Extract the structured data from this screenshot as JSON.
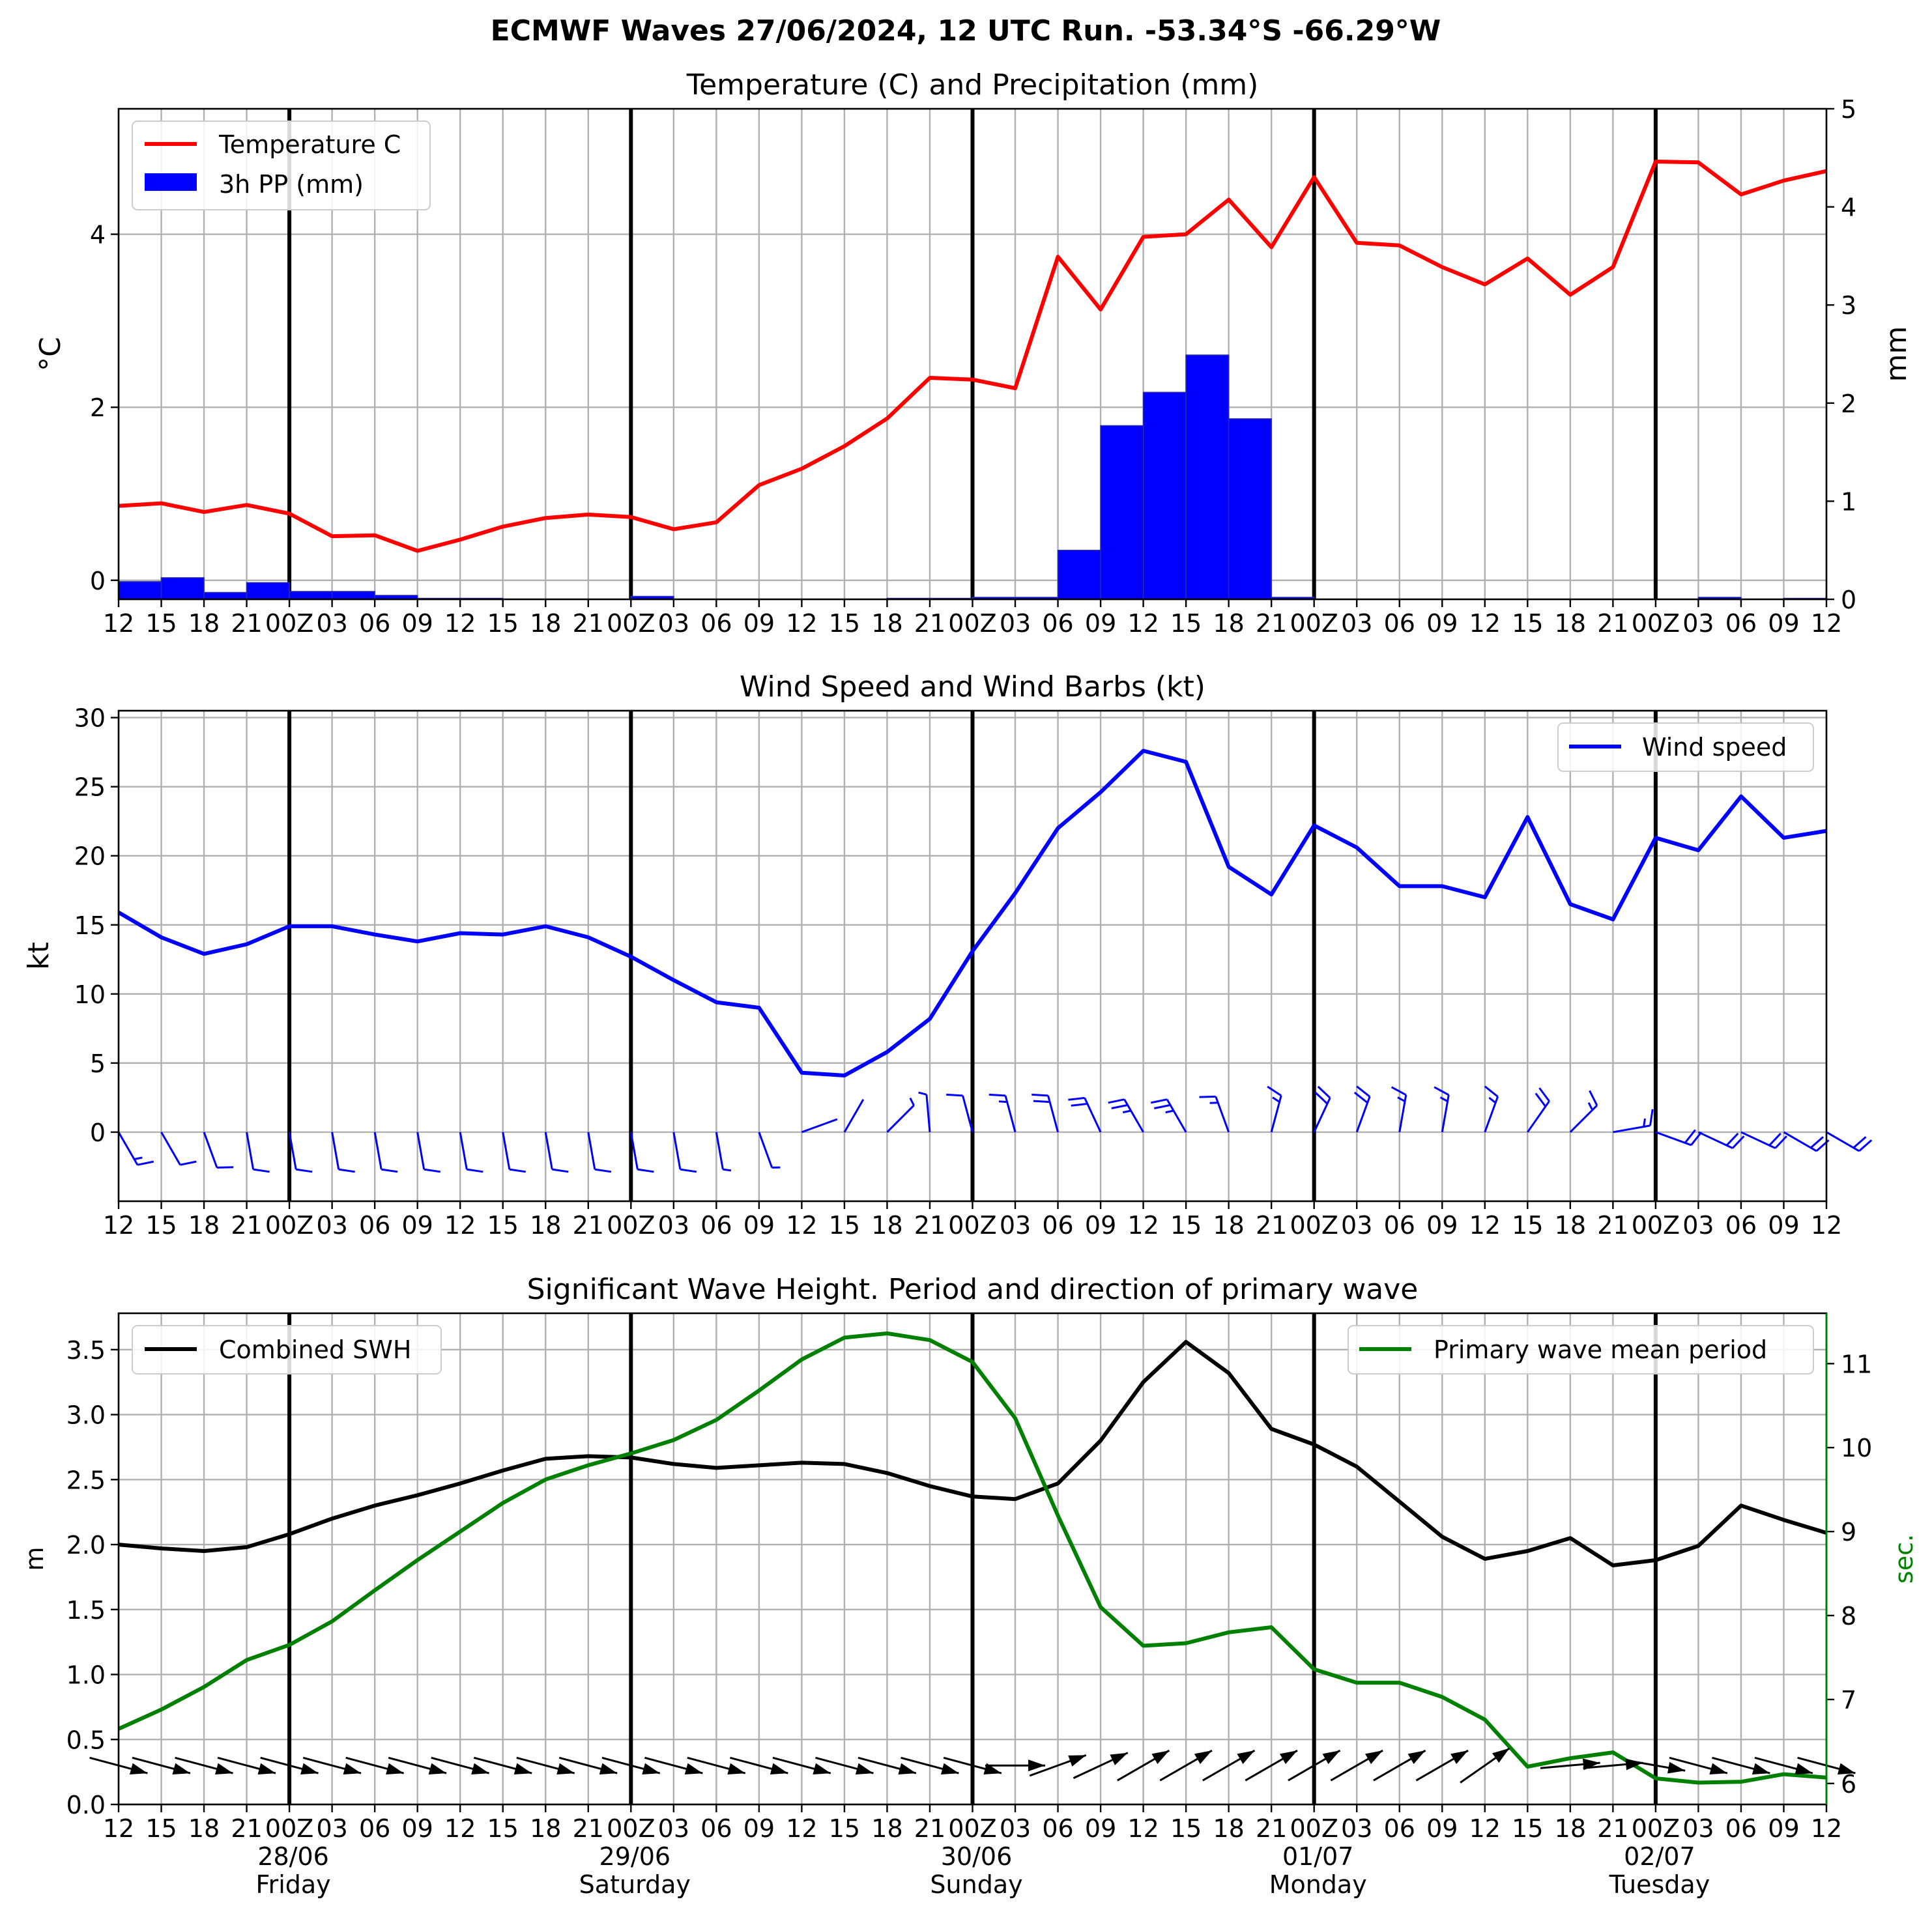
{
  "figure_title": "ECMWF Waves 27/06/2024, 12 UTC Run. -53.34°S -66.29°W",
  "colors": {
    "temperature": "#ff0000",
    "precipitation": "#0000ff",
    "wind": "#0000ff",
    "swh": "#000000",
    "period": "#008000",
    "grid": "#b0b0b0"
  },
  "time_axis": {
    "x_tick_labels": [
      "12",
      "15",
      "18",
      "21",
      "00Z",
      "03",
      "06",
      "09",
      "12",
      "15",
      "18",
      "21",
      "00Z",
      "03",
      "06",
      "09",
      "12",
      "15",
      "18",
      "21",
      "00Z",
      "03",
      "06",
      "09",
      "12",
      "15",
      "18",
      "21",
      "00Z",
      "03",
      "06",
      "09",
      "12",
      "15",
      "18",
      "21",
      "00Z",
      "03",
      "06",
      "09",
      "12"
    ],
    "day_markers": [
      {
        "date": "28/06",
        "day": "Friday"
      },
      {
        "date": "29/06",
        "day": "Saturday"
      },
      {
        "date": "30/06",
        "day": "Sunday"
      },
      {
        "date": "01/07",
        "day": "Monday"
      },
      {
        "date": "02/07",
        "day": "Tuesday"
      }
    ]
  },
  "chart_data": [
    {
      "type": "line",
      "title": "Temperature (C) and Precipitation (mm)",
      "ylabel": "°C",
      "y2label": "mm",
      "ylim": [
        -0.22,
        5.45
      ],
      "y2lim": [
        0,
        5
      ],
      "yticks": [
        0,
        2,
        4
      ],
      "y2ticks": [
        0,
        1,
        2,
        3,
        4,
        5
      ],
      "legend_position": "top-left",
      "series": [
        {
          "name": "Temperature C",
          "kind": "line",
          "axis": "left",
          "values": [
            0.86,
            0.89,
            0.79,
            0.87,
            0.77,
            0.51,
            0.52,
            0.34,
            0.47,
            0.62,
            0.72,
            0.76,
            0.73,
            0.59,
            0.67,
            1.1,
            1.29,
            1.55,
            1.87,
            2.34,
            2.32,
            2.22,
            3.74,
            3.13,
            3.97,
            4.0,
            4.4,
            3.85,
            4.66,
            3.9,
            3.87,
            3.62,
            3.42,
            3.72,
            3.3,
            3.62,
            4.84,
            4.83,
            4.46,
            4.62,
            4.73
          ]
        },
        {
          "name": "3h PP (mm)",
          "kind": "bar",
          "axis": "right",
          "values": [
            0.18,
            0.22,
            0.07,
            0.17,
            0.08,
            0.08,
            0.04,
            0.01,
            0.01,
            0.0,
            0.0,
            0.0,
            0.03,
            0.0,
            0.0,
            0.0,
            0.0,
            0.0,
            0.01,
            0.01,
            0.02,
            0.02,
            0.5,
            1.77,
            2.11,
            2.49,
            1.84,
            0.02,
            0.0,
            0.0,
            0.0,
            0.0,
            0.0,
            0.0,
            0.0,
            0.0,
            0.0,
            0.02,
            0.0,
            0.01
          ]
        }
      ]
    },
    {
      "type": "line",
      "title": "Wind Speed and Wind Barbs (kt)",
      "ylabel": "kt",
      "ylim": [
        -5,
        30.5
      ],
      "yticks": [
        0,
        5,
        10,
        15,
        20,
        25,
        30
      ],
      "legend_position": "top-right",
      "series": [
        {
          "name": "Wind speed",
          "kind": "line",
          "values": [
            15.9,
            14.1,
            12.9,
            13.6,
            14.9,
            14.9,
            14.3,
            13.8,
            14.4,
            14.3,
            14.9,
            14.1,
            12.7,
            11.0,
            9.4,
            9.0,
            4.3,
            4.1,
            5.8,
            8.2,
            13.1,
            17.3,
            22.0,
            24.6,
            27.6,
            26.8,
            19.2,
            17.2,
            22.2,
            20.6,
            17.8,
            17.8,
            17.0,
            22.8,
            16.5,
            15.4,
            21.3,
            20.4,
            24.3,
            21.3,
            21.8
          ]
        },
        {
          "name": "wind barb direction (deg from)",
          "kind": "barbs",
          "values": [
            330,
            330,
            340,
            350,
            350,
            350,
            350,
            350,
            350,
            350,
            350,
            350,
            350,
            350,
            350,
            340,
            250,
            210,
            225,
            175,
            165,
            165,
            165,
            155,
            150,
            150,
            160,
            195,
            205,
            200,
            190,
            190,
            200,
            215,
            225,
            260,
            290,
            295,
            295,
            300,
            300
          ]
        }
      ]
    },
    {
      "type": "line",
      "title": "Significant Wave Height. Period and direction of primary wave",
      "ylabel": "m",
      "y2label": "sec.",
      "ylim": [
        0,
        3.78
      ],
      "y2lim": [
        5.75,
        11.6
      ],
      "yticks": [
        0.0,
        0.5,
        1.0,
        1.5,
        2.0,
        2.5,
        3.0,
        3.5
      ],
      "y2ticks": [
        6,
        7,
        8,
        9,
        10,
        11
      ],
      "legend_left_position": "top-left",
      "legend_right_position": "top-right",
      "series": [
        {
          "name": "Combined SWH",
          "kind": "line",
          "axis": "left",
          "values": [
            2.0,
            1.97,
            1.95,
            1.98,
            2.08,
            2.2,
            2.3,
            2.38,
            2.47,
            2.57,
            2.66,
            2.68,
            2.67,
            2.62,
            2.59,
            2.61,
            2.63,
            2.62,
            2.55,
            2.45,
            2.37,
            2.35,
            2.47,
            2.8,
            3.25,
            3.56,
            3.32,
            2.89,
            2.77,
            2.6,
            2.33,
            2.06,
            1.89,
            1.95,
            2.05,
            1.84,
            1.88,
            1.99,
            2.3,
            2.19,
            2.09
          ]
        },
        {
          "name": "Primary wave mean period",
          "kind": "line",
          "axis": "right",
          "values": [
            6.65,
            6.88,
            7.15,
            7.47,
            7.65,
            7.93,
            8.3,
            8.66,
            9.0,
            9.34,
            9.62,
            9.79,
            9.93,
            10.09,
            10.33,
            10.68,
            11.05,
            11.31,
            11.36,
            11.28,
            11.02,
            10.35,
            9.19,
            8.1,
            7.64,
            7.67,
            7.8,
            7.86,
            7.36,
            7.2,
            7.2,
            7.03,
            6.76,
            6.2,
            6.3,
            6.37,
            6.06,
            6.01,
            6.02,
            6.11,
            6.07
          ]
        },
        {
          "name": "primary wave direction (deg from)",
          "kind": "arrows",
          "values": [
            285,
            285,
            285,
            285,
            285,
            285,
            285,
            285,
            285,
            285,
            285,
            285,
            285,
            285,
            285,
            285,
            285,
            285,
            285,
            285,
            285,
            270,
            250,
            245,
            240,
            240,
            240,
            240,
            240,
            240,
            240,
            240,
            235,
            null,
            265,
            265,
            280,
            285,
            285,
            285,
            285
          ]
        }
      ]
    }
  ]
}
